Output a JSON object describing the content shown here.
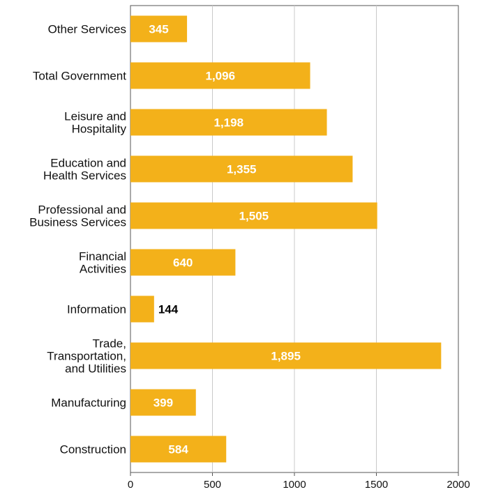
{
  "chart_data": {
    "type": "bar",
    "orientation": "horizontal",
    "categories": [
      [
        "Other Services"
      ],
      [
        "Total Government"
      ],
      [
        "Leisure and",
        "Hospitality"
      ],
      [
        "Education and",
        "Health Services"
      ],
      [
        "Professional and",
        "Business Services"
      ],
      [
        "Financial",
        "Activities"
      ],
      [
        "Information"
      ],
      [
        "Trade,",
        "Transportation,",
        "and Utilities"
      ],
      [
        "Manufacturing"
      ],
      [
        "Construction"
      ]
    ],
    "values": [
      345,
      1096,
      1198,
      1355,
      1505,
      640,
      144,
      1895,
      399,
      584
    ],
    "data_labels": [
      "345",
      "1,096",
      "1,198",
      "1,355",
      "1,505",
      "640",
      "144",
      "1,895",
      "399",
      "584"
    ],
    "xlim": [
      0,
      2000
    ],
    "x_ticks": [
      0,
      500,
      1000,
      1500,
      2000
    ],
    "x_tick_labels": [
      "0",
      "500",
      "1000",
      "1500",
      "2000"
    ],
    "grid": "vertical",
    "bar_color": "#f3b11a",
    "label_inside_color": "#ffffff",
    "label_outside_color": "#000000",
    "title": "",
    "xlabel": "",
    "ylabel": ""
  }
}
